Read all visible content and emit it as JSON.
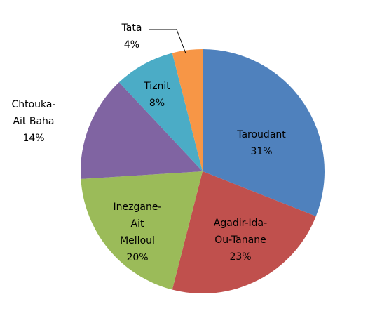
{
  "chart_data": {
    "type": "pie",
    "categories": [
      "Taroudant",
      "Agadir-Ida-Ou-Tanane",
      "Inezgane-Ait Melloul",
      "Chtouka-Ait Baha",
      "Tiznit",
      "Tata"
    ],
    "values": [
      31,
      23,
      20,
      14,
      8,
      4
    ],
    "value_labels": [
      "31%",
      "23%",
      "20%",
      "14%",
      "8%",
      "4%"
    ],
    "colors": [
      "#4f81bd",
      "#c0504d",
      "#9bbb59",
      "#8064a2",
      "#4bacc6",
      "#f79646"
    ]
  }
}
